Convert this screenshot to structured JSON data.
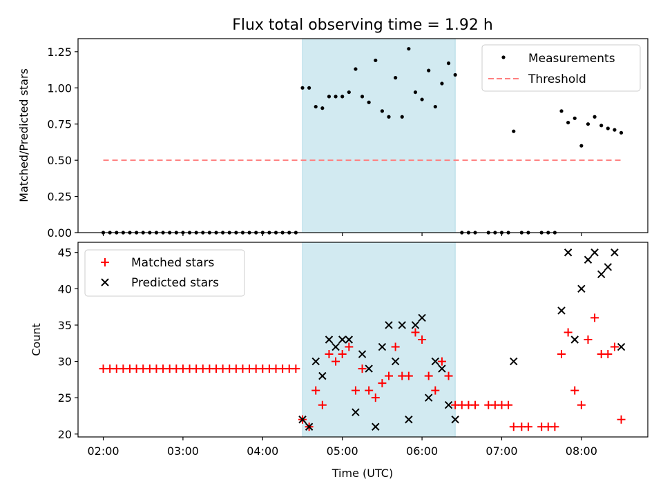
{
  "chart_data": [
    {
      "type": "scatter",
      "title": "Flux total observing time = 1.92 h",
      "xlabel": "",
      "ylabel": "Matched/Predicted stars",
      "ylim": [
        0,
        1.34
      ],
      "yticks": [
        "0.00",
        "0.25",
        "0.50",
        "0.75",
        "1.00",
        "1.25"
      ],
      "grid": false,
      "legend_position": "top-right",
      "shaded_region": {
        "x_start": "04:30",
        "x_end": "06:25",
        "color": "#add8e6"
      },
      "series": [
        {
          "name": "Measurements",
          "style": "dot",
          "color": "#000000",
          "points": [
            [
              "02:00",
              0
            ],
            [
              "02:05",
              0
            ],
            [
              "02:10",
              0
            ],
            [
              "02:15",
              0
            ],
            [
              "02:20",
              0
            ],
            [
              "02:25",
              0
            ],
            [
              "02:30",
              0
            ],
            [
              "02:35",
              0
            ],
            [
              "02:40",
              0
            ],
            [
              "02:45",
              0
            ],
            [
              "02:50",
              0
            ],
            [
              "02:55",
              0
            ],
            [
              "03:00",
              0
            ],
            [
              "03:05",
              0
            ],
            [
              "03:10",
              0
            ],
            [
              "03:15",
              0
            ],
            [
              "03:20",
              0
            ],
            [
              "03:25",
              0
            ],
            [
              "03:30",
              0
            ],
            [
              "03:35",
              0
            ],
            [
              "03:40",
              0
            ],
            [
              "03:45",
              0
            ],
            [
              "03:50",
              0
            ],
            [
              "03:55",
              0
            ],
            [
              "04:00",
              0
            ],
            [
              "04:05",
              0
            ],
            [
              "04:10",
              0
            ],
            [
              "04:15",
              0
            ],
            [
              "04:20",
              0
            ],
            [
              "04:25",
              0
            ],
            [
              "04:30",
              1.0
            ],
            [
              "04:35",
              1.0
            ],
            [
              "04:40",
              0.87
            ],
            [
              "04:45",
              0.86
            ],
            [
              "04:50",
              0.94
            ],
            [
              "04:55",
              0.94
            ],
            [
              "05:00",
              0.94
            ],
            [
              "05:05",
              0.97
            ],
            [
              "05:10",
              1.13
            ],
            [
              "05:15",
              0.94
            ],
            [
              "05:20",
              0.9
            ],
            [
              "05:25",
              1.19
            ],
            [
              "05:30",
              0.84
            ],
            [
              "05:35",
              0.8
            ],
            [
              "05:40",
              1.07
            ],
            [
              "05:45",
              0.8
            ],
            [
              "05:50",
              1.27
            ],
            [
              "05:55",
              0.97
            ],
            [
              "06:00",
              0.92
            ],
            [
              "06:05",
              1.12
            ],
            [
              "06:10",
              0.87
            ],
            [
              "06:15",
              1.03
            ],
            [
              "06:20",
              1.17
            ],
            [
              "06:25",
              1.09
            ],
            [
              "06:30",
              0
            ],
            [
              "06:35",
              0
            ],
            [
              "06:40",
              0
            ],
            [
              "06:50",
              0
            ],
            [
              "06:55",
              0
            ],
            [
              "07:00",
              0
            ],
            [
              "07:05",
              0
            ],
            [
              "07:09",
              0.7
            ],
            [
              "07:15",
              0
            ],
            [
              "07:20",
              0
            ],
            [
              "07:30",
              0
            ],
            [
              "07:35",
              0
            ],
            [
              "07:40",
              0
            ],
            [
              "07:45",
              0.84
            ],
            [
              "07:50",
              0.76
            ],
            [
              "07:55",
              0.79
            ],
            [
              "08:00",
              0.6
            ],
            [
              "08:05",
              0.75
            ],
            [
              "08:10",
              0.8
            ],
            [
              "08:15",
              0.74
            ],
            [
              "08:20",
              0.72
            ],
            [
              "08:25",
              0.71
            ],
            [
              "08:30",
              0.69
            ]
          ]
        },
        {
          "name": "Threshold",
          "style": "dashed-line",
          "color": "#ff7f7f",
          "points": [
            [
              "02:00",
              0.5
            ],
            [
              "08:30",
              0.5
            ]
          ]
        }
      ]
    },
    {
      "type": "scatter",
      "title": "",
      "xlabel": "Time (UTC)",
      "ylabel": "Count",
      "ylim": [
        19.6,
        46.4
      ],
      "yticks": [
        "20",
        "25",
        "30",
        "35",
        "40",
        "45"
      ],
      "xticks": [
        "02:00",
        "03:00",
        "04:00",
        "05:00",
        "06:00",
        "07:00",
        "08:00"
      ],
      "xlim": [
        "01:41",
        "08:50"
      ],
      "grid": false,
      "legend_position": "top-left",
      "shaded_region": {
        "x_start": "04:30",
        "x_end": "06:25",
        "color": "#add8e6"
      },
      "series": [
        {
          "name": "Matched stars",
          "marker": "plus",
          "color": "#ff0000",
          "points": [
            [
              "02:00",
              29
            ],
            [
              "02:05",
              29
            ],
            [
              "02:10",
              29
            ],
            [
              "02:15",
              29
            ],
            [
              "02:20",
              29
            ],
            [
              "02:25",
              29
            ],
            [
              "02:30",
              29
            ],
            [
              "02:35",
              29
            ],
            [
              "02:40",
              29
            ],
            [
              "02:45",
              29
            ],
            [
              "02:50",
              29
            ],
            [
              "02:55",
              29
            ],
            [
              "03:00",
              29
            ],
            [
              "03:05",
              29
            ],
            [
              "03:10",
              29
            ],
            [
              "03:15",
              29
            ],
            [
              "03:20",
              29
            ],
            [
              "03:25",
              29
            ],
            [
              "03:30",
              29
            ],
            [
              "03:35",
              29
            ],
            [
              "03:40",
              29
            ],
            [
              "03:45",
              29
            ],
            [
              "03:50",
              29
            ],
            [
              "03:55",
              29
            ],
            [
              "04:00",
              29
            ],
            [
              "04:05",
              29
            ],
            [
              "04:10",
              29
            ],
            [
              "04:15",
              29
            ],
            [
              "04:20",
              29
            ],
            [
              "04:25",
              29
            ],
            [
              "04:30",
              22
            ],
            [
              "04:35",
              21
            ],
            [
              "04:40",
              26
            ],
            [
              "04:45",
              24
            ],
            [
              "04:50",
              31
            ],
            [
              "04:55",
              30
            ],
            [
              "05:00",
              31
            ],
            [
              "05:05",
              32
            ],
            [
              "05:10",
              26
            ],
            [
              "05:15",
              29
            ],
            [
              "05:20",
              26
            ],
            [
              "05:25",
              25
            ],
            [
              "05:30",
              27
            ],
            [
              "05:35",
              28
            ],
            [
              "05:40",
              32
            ],
            [
              "05:45",
              28
            ],
            [
              "05:50",
              28
            ],
            [
              "05:55",
              34
            ],
            [
              "06:00",
              33
            ],
            [
              "06:05",
              28
            ],
            [
              "06:10",
              26
            ],
            [
              "06:15",
              30
            ],
            [
              "06:20",
              28
            ],
            [
              "06:25",
              24
            ],
            [
              "06:30",
              24
            ],
            [
              "06:35",
              24
            ],
            [
              "06:40",
              24
            ],
            [
              "06:50",
              24
            ],
            [
              "06:55",
              24
            ],
            [
              "07:00",
              24
            ],
            [
              "07:05",
              24
            ],
            [
              "07:09",
              21
            ],
            [
              "07:15",
              21
            ],
            [
              "07:20",
              21
            ],
            [
              "07:30",
              21
            ],
            [
              "07:35",
              21
            ],
            [
              "07:40",
              21
            ],
            [
              "07:45",
              31
            ],
            [
              "07:50",
              34
            ],
            [
              "07:55",
              26
            ],
            [
              "08:00",
              24
            ],
            [
              "08:05",
              33
            ],
            [
              "08:10",
              36
            ],
            [
              "08:15",
              31
            ],
            [
              "08:20",
              31
            ],
            [
              "08:25",
              32
            ],
            [
              "08:30",
              22
            ]
          ]
        },
        {
          "name": "Predicted stars",
          "marker": "x",
          "color": "#000000",
          "points": [
            [
              "04:30",
              22
            ],
            [
              "04:35",
              21
            ],
            [
              "04:40",
              30
            ],
            [
              "04:45",
              28
            ],
            [
              "04:50",
              33
            ],
            [
              "04:55",
              32
            ],
            [
              "05:00",
              33
            ],
            [
              "05:05",
              33
            ],
            [
              "05:10",
              23
            ],
            [
              "05:15",
              31
            ],
            [
              "05:20",
              29
            ],
            [
              "05:25",
              21
            ],
            [
              "05:30",
              32
            ],
            [
              "05:35",
              35
            ],
            [
              "05:40",
              30
            ],
            [
              "05:45",
              35
            ],
            [
              "05:50",
              22
            ],
            [
              "05:55",
              35
            ],
            [
              "06:00",
              36
            ],
            [
              "06:05",
              25
            ],
            [
              "06:10",
              30
            ],
            [
              "06:15",
              29
            ],
            [
              "06:20",
              24
            ],
            [
              "06:25",
              22
            ],
            [
              "07:09",
              30
            ],
            [
              "07:45",
              37
            ],
            [
              "07:50",
              45
            ],
            [
              "07:55",
              33
            ],
            [
              "08:00",
              40
            ],
            [
              "08:05",
              44
            ],
            [
              "08:10",
              45
            ],
            [
              "08:15",
              42
            ],
            [
              "08:20",
              43
            ],
            [
              "08:25",
              45
            ],
            [
              "08:30",
              32
            ]
          ]
        }
      ]
    }
  ]
}
